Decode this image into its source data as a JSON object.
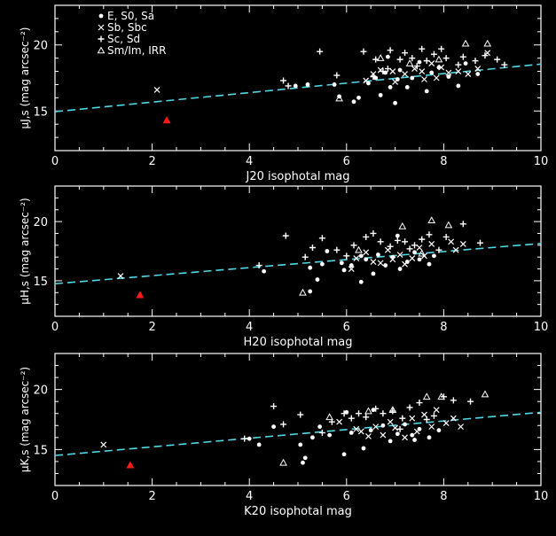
{
  "legend": {
    "entries": [
      {
        "symbol": "●",
        "label": "E, S0, Sa"
      },
      {
        "symbol": "×",
        "label": "Sb, Sbc"
      },
      {
        "symbol": "+",
        "label": "Sc, Sd"
      },
      {
        "symbol": "△",
        "label": "Sm/Im, IRR"
      }
    ]
  },
  "colors": {
    "background": "#000000",
    "axes": "#ffffff",
    "fit": "#4fd8e6",
    "highlight": "#ff1a1a"
  },
  "chart_data": [
    {
      "type": "scatter",
      "band": "J",
      "xlabel": "J20 isophotal mag",
      "ylabel": "μJ,s (mag arcsec⁻²)",
      "xlim": [
        0,
        10
      ],
      "ylim": [
        12,
        23
      ],
      "xticks": [
        0,
        2,
        4,
        6,
        8,
        10
      ],
      "yticks": [
        15,
        20
      ],
      "fit": {
        "x": [
          0,
          10
        ],
        "y": [
          14.95,
          18.55
        ]
      },
      "highlight": [
        [
          2.3,
          14.3
        ]
      ],
      "series": [
        {
          "marker": "circle",
          "points": [
            [
              4.95,
              16.9
            ],
            [
              5.2,
              17.0
            ],
            [
              5.75,
              17.0
            ],
            [
              5.85,
              16.1
            ],
            [
              6.15,
              15.7
            ],
            [
              6.25,
              16.0
            ],
            [
              6.45,
              17.1
            ],
            [
              6.6,
              17.5
            ],
            [
              6.7,
              16.2
            ],
            [
              6.8,
              17.9
            ],
            [
              6.9,
              16.8
            ],
            [
              7.05,
              17.4
            ],
            [
              7.1,
              18.1
            ],
            [
              7.25,
              16.8
            ],
            [
              7.35,
              17.5
            ],
            [
              7.5,
              18.7
            ],
            [
              7.65,
              16.5
            ],
            [
              7.75,
              17.9
            ],
            [
              7.9,
              18.3
            ],
            [
              8.1,
              17.6
            ],
            [
              8.3,
              16.9
            ],
            [
              8.45,
              18.6
            ],
            [
              8.7,
              17.8
            ],
            [
              7.0,
              15.6
            ],
            [
              6.85,
              19.1
            ]
          ]
        },
        {
          "marker": "cross",
          "points": [
            [
              2.1,
              16.6
            ],
            [
              6.55,
              17.8
            ],
            [
              6.7,
              18.1
            ],
            [
              6.95,
              18.0
            ],
            [
              7.2,
              17.8
            ],
            [
              7.4,
              18.2
            ],
            [
              7.55,
              18.0
            ],
            [
              7.6,
              17.4
            ],
            [
              7.75,
              18.6
            ],
            [
              7.85,
              17.5
            ],
            [
              7.95,
              18.3
            ],
            [
              8.1,
              17.9
            ],
            [
              8.3,
              18.0
            ],
            [
              8.5,
              17.8
            ],
            [
              8.7,
              18.2
            ],
            [
              8.9,
              19.4
            ],
            [
              6.4,
              17.3
            ],
            [
              7.0,
              17.2
            ]
          ]
        },
        {
          "marker": "plus",
          "points": [
            [
              4.7,
              17.3
            ],
            [
              4.8,
              16.9
            ],
            [
              5.45,
              19.5
            ],
            [
              5.8,
              17.7
            ],
            [
              6.35,
              19.5
            ],
            [
              6.55,
              17.6
            ],
            [
              6.75,
              18.0
            ],
            [
              6.85,
              18.2
            ],
            [
              6.9,
              19.6
            ],
            [
              7.1,
              18.9
            ],
            [
              7.2,
              19.4
            ],
            [
              7.35,
              19.0
            ],
            [
              7.55,
              19.7
            ],
            [
              7.65,
              18.8
            ],
            [
              7.8,
              19.3
            ],
            [
              7.95,
              19.7
            ],
            [
              8.05,
              19.0
            ],
            [
              8.3,
              18.5
            ],
            [
              8.4,
              19.1
            ],
            [
              8.65,
              18.8
            ],
            [
              8.85,
              19.2
            ],
            [
              9.1,
              18.9
            ],
            [
              9.25,
              18.5
            ],
            [
              7.45,
              18.4
            ],
            [
              6.6,
              18.9
            ]
          ]
        },
        {
          "marker": "triangle",
          "points": [
            [
              5.85,
              15.95
            ],
            [
              6.7,
              19.0
            ],
            [
              7.3,
              18.6
            ],
            [
              8.45,
              20.1
            ],
            [
              8.9,
              20.1
            ],
            [
              7.9,
              18.9
            ]
          ]
        }
      ]
    },
    {
      "type": "scatter",
      "band": "H",
      "xlabel": "H20 isophotal mag",
      "ylabel": "μH,s (mag arcsec⁻²)",
      "xlim": [
        0,
        10
      ],
      "ylim": [
        12,
        23
      ],
      "xticks": [
        0,
        2,
        4,
        6,
        8,
        10
      ],
      "yticks": [
        15,
        20
      ],
      "fit": {
        "x": [
          0,
          10
        ],
        "y": [
          14.75,
          18.15
        ]
      },
      "highlight": [
        [
          1.75,
          13.8
        ]
      ],
      "series": [
        {
          "marker": "circle",
          "points": [
            [
              4.3,
              15.8
            ],
            [
              5.25,
              16.1
            ],
            [
              5.4,
              15.1
            ],
            [
              5.5,
              16.4
            ],
            [
              5.9,
              16.5
            ],
            [
              5.95,
              15.9
            ],
            [
              6.1,
              16.3
            ],
            [
              6.3,
              14.9
            ],
            [
              6.4,
              16.8
            ],
            [
              6.55,
              15.6
            ],
            [
              6.65,
              17.2
            ],
            [
              6.8,
              16.3
            ],
            [
              6.95,
              17.0
            ],
            [
              7.1,
              16.0
            ],
            [
              7.25,
              16.6
            ],
            [
              7.4,
              17.4
            ],
            [
              7.5,
              16.8
            ],
            [
              7.7,
              16.4
            ],
            [
              7.8,
              17.1
            ],
            [
              6.3,
              17.1
            ],
            [
              7.05,
              18.8
            ],
            [
              5.6,
              17.5
            ],
            [
              5.25,
              14.1
            ]
          ]
        },
        {
          "marker": "cross",
          "points": [
            [
              1.35,
              15.4
            ],
            [
              6.2,
              16.9
            ],
            [
              6.4,
              17.4
            ],
            [
              6.55,
              16.6
            ],
            [
              6.7,
              16.5
            ],
            [
              6.85,
              17.6
            ],
            [
              6.95,
              16.8
            ],
            [
              7.1,
              17.2
            ],
            [
              7.2,
              16.4
            ],
            [
              7.35,
              16.9
            ],
            [
              7.5,
              17.8
            ],
            [
              7.6,
              17.1
            ],
            [
              7.75,
              18.1
            ],
            [
              8.15,
              18.3
            ],
            [
              8.25,
              17.6
            ],
            [
              8.4,
              18.1
            ],
            [
              6.1,
              16.0
            ]
          ]
        },
        {
          "marker": "plus",
          "points": [
            [
              4.2,
              16.3
            ],
            [
              4.75,
              18.8
            ],
            [
              5.15,
              17.0
            ],
            [
              5.3,
              17.8
            ],
            [
              5.5,
              18.6
            ],
            [
              5.8,
              17.6
            ],
            [
              6.15,
              18.0
            ],
            [
              6.4,
              18.7
            ],
            [
              6.55,
              19.0
            ],
            [
              6.7,
              18.3
            ],
            [
              6.9,
              17.9
            ],
            [
              7.05,
              18.4
            ],
            [
              7.2,
              18.3
            ],
            [
              7.4,
              18.0
            ],
            [
              7.55,
              18.5
            ],
            [
              7.7,
              18.9
            ],
            [
              7.9,
              17.6
            ],
            [
              8.05,
              18.7
            ],
            [
              8.4,
              19.8
            ],
            [
              8.75,
              18.2
            ],
            [
              7.3,
              17.7
            ],
            [
              6.0,
              17.1
            ]
          ]
        },
        {
          "marker": "triangle",
          "points": [
            [
              5.1,
              14.0
            ],
            [
              7.15,
              19.6
            ],
            [
              7.75,
              20.1
            ],
            [
              8.1,
              19.7
            ],
            [
              6.25,
              17.6
            ],
            [
              7.55,
              17.3
            ]
          ]
        }
      ]
    },
    {
      "type": "scatter",
      "band": "K",
      "xlabel": "K20 isophotal mag",
      "ylabel": "μK,s (mag arcsec⁻²)",
      "xlim": [
        0,
        10
      ],
      "ylim": [
        12,
        23
      ],
      "xticks": [
        0,
        2,
        4,
        6,
        8,
        10
      ],
      "yticks": [
        15,
        20
      ],
      "fit": {
        "x": [
          0,
          10
        ],
        "y": [
          14.5,
          18.1
        ]
      },
      "highlight": [
        [
          1.55,
          13.7
        ]
      ],
      "series": [
        {
          "marker": "circle",
          "points": [
            [
              4.0,
              15.9
            ],
            [
              4.5,
              16.9
            ],
            [
              5.05,
              15.4
            ],
            [
              5.15,
              14.3
            ],
            [
              5.3,
              16.0
            ],
            [
              5.45,
              16.9
            ],
            [
              5.65,
              16.2
            ],
            [
              5.95,
              14.6
            ],
            [
              6.1,
              16.4
            ],
            [
              6.35,
              15.1
            ],
            [
              6.5,
              16.6
            ],
            [
              6.75,
              17.0
            ],
            [
              6.9,
              15.7
            ],
            [
              7.05,
              16.3
            ],
            [
              7.2,
              17.1
            ],
            [
              7.35,
              16.2
            ],
            [
              7.5,
              16.7
            ],
            [
              7.7,
              16.0
            ],
            [
              7.9,
              16.6
            ],
            [
              6.0,
              18.1
            ],
            [
              6.55,
              18.3
            ],
            [
              7.4,
              15.8
            ],
            [
              5.1,
              13.9
            ],
            [
              4.2,
              15.4
            ]
          ]
        },
        {
          "marker": "cross",
          "points": [
            [
              1.0,
              15.4
            ],
            [
              6.3,
              16.5
            ],
            [
              6.45,
              16.1
            ],
            [
              6.6,
              16.9
            ],
            [
              6.75,
              16.2
            ],
            [
              6.9,
              17.3
            ],
            [
              7.0,
              16.8
            ],
            [
              7.2,
              16.0
            ],
            [
              7.35,
              17.6
            ],
            [
              7.45,
              16.5
            ],
            [
              7.6,
              17.9
            ],
            [
              7.75,
              16.9
            ],
            [
              7.85,
              18.3
            ],
            [
              8.05,
              17.2
            ],
            [
              8.2,
              17.6
            ],
            [
              8.35,
              16.9
            ],
            [
              6.2,
              16.7
            ],
            [
              5.85,
              17.3
            ]
          ]
        },
        {
          "marker": "plus",
          "points": [
            [
              3.9,
              15.9
            ],
            [
              4.5,
              18.6
            ],
            [
              4.7,
              17.1
            ],
            [
              5.05,
              17.9
            ],
            [
              5.5,
              16.4
            ],
            [
              5.7,
              17.3
            ],
            [
              5.95,
              18.0
            ],
            [
              6.25,
              18.0
            ],
            [
              6.4,
              17.7
            ],
            [
              6.6,
              18.4
            ],
            [
              6.75,
              18.0
            ],
            [
              6.95,
              18.2
            ],
            [
              7.15,
              17.6
            ],
            [
              7.3,
              18.5
            ],
            [
              7.5,
              18.9
            ],
            [
              7.65,
              17.5
            ],
            [
              7.8,
              17.8
            ],
            [
              8.0,
              19.4
            ],
            [
              8.2,
              19.1
            ],
            [
              8.55,
              19.0
            ],
            [
              7.1,
              16.7
            ],
            [
              6.1,
              17.6
            ]
          ]
        },
        {
          "marker": "triangle",
          "points": [
            [
              4.7,
              13.9
            ],
            [
              6.95,
              18.3
            ],
            [
              7.65,
              19.4
            ],
            [
              7.95,
              19.4
            ],
            [
              8.85,
              19.6
            ],
            [
              6.45,
              18.2
            ],
            [
              5.65,
              17.7
            ]
          ]
        }
      ]
    }
  ]
}
